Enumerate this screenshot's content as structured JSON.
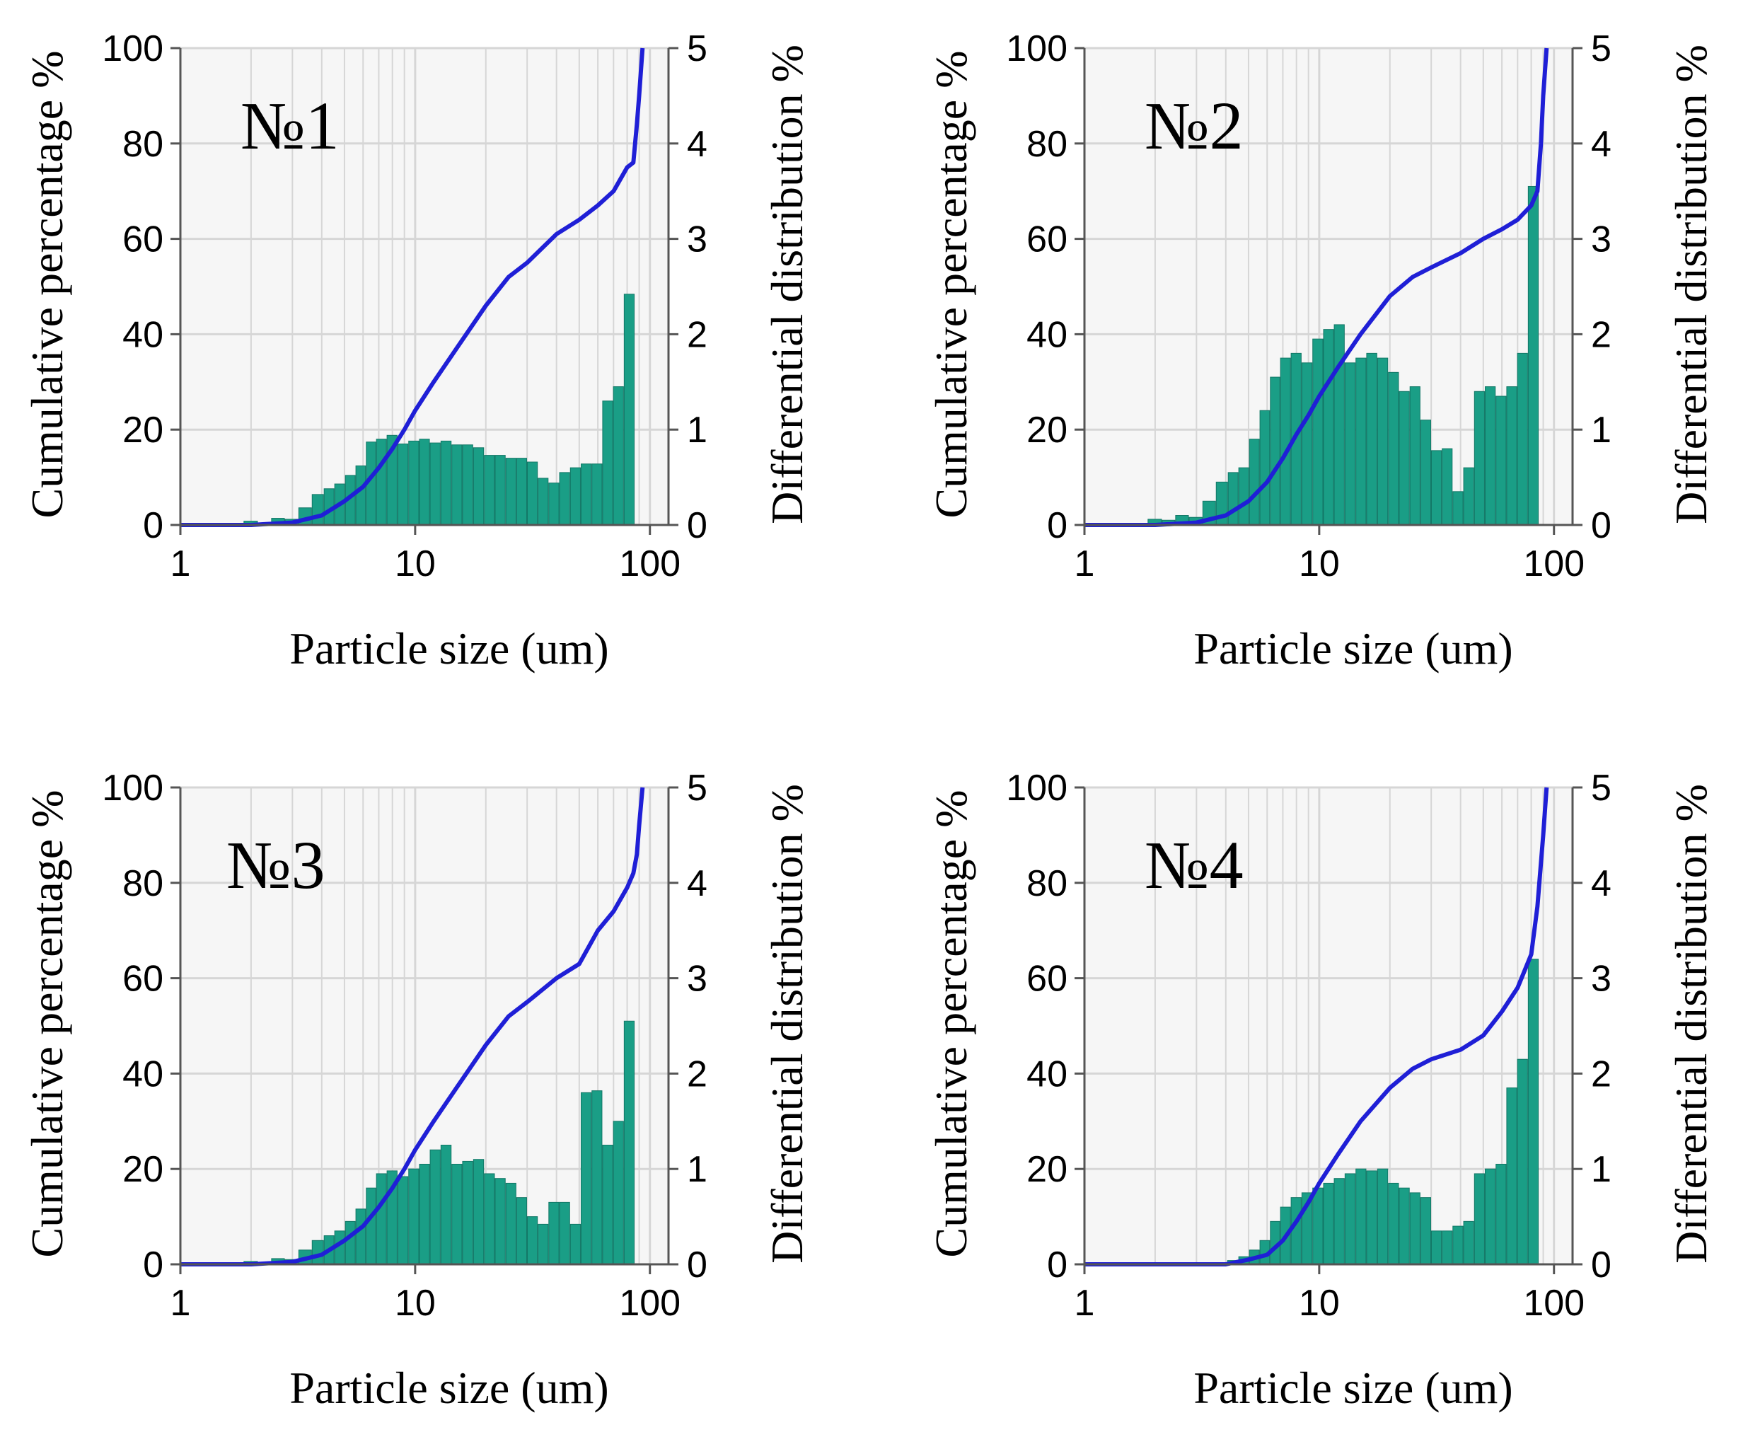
{
  "colors": {
    "bars": "#1a9e86",
    "bar_edge": "#127766",
    "line": "#1f1fd6",
    "plot_bg": "#f6f6f6",
    "grid": "#d6d6d6",
    "axis": "#555555"
  },
  "chart_data": [
    {
      "type": "bar",
      "title": "№1",
      "xlabel": "Particle size (um)",
      "ylabel": "Cumulative percentage %",
      "y2label": "Differential distribution %",
      "xscale": "log",
      "xlim": [
        1,
        120
      ],
      "ylim": [
        0,
        100
      ],
      "y2lim": [
        0,
        5
      ],
      "xticks": [
        "1",
        "10",
        "100"
      ],
      "yticks": [
        "0",
        "20",
        "40",
        "60",
        "80",
        "100"
      ],
      "y2ticks": [
        "0",
        "1",
        "2",
        "3",
        "4",
        "5"
      ],
      "grid": true,
      "series": [
        {
          "name": "Differential distribution %",
          "type": "bar",
          "axis": "right",
          "x": [
            2.0,
            2.3,
            2.6,
            3.0,
            3.4,
            3.9,
            4.3,
            4.8,
            5.3,
            5.9,
            6.5,
            7.2,
            8.0,
            8.9,
            9.9,
            11,
            12.2,
            13.6,
            15.1,
            16.8,
            18.7,
            20.8,
            23.1,
            25.7,
            28.5,
            31.7,
            35.2,
            39.1,
            43.5,
            48.3,
            53.7,
            59.7,
            66.3,
            73.7,
            81.9
          ],
          "values": [
            0.04,
            0.02,
            0.07,
            0.06,
            0.18,
            0.32,
            0.38,
            0.43,
            0.52,
            0.62,
            0.87,
            0.9,
            0.94,
            0.85,
            0.88,
            0.9,
            0.86,
            0.88,
            0.84,
            0.84,
            0.81,
            0.73,
            0.73,
            0.7,
            0.7,
            0.66,
            0.49,
            0.44,
            0.55,
            0.6,
            0.64,
            0.64,
            1.3,
            1.45,
            2.42
          ]
        },
        {
          "name": "Cumulative percentage %",
          "type": "line",
          "axis": "left",
          "x": [
            1,
            2,
            3,
            4,
            5,
            6,
            7,
            8,
            9,
            10,
            12,
            15,
            20,
            25,
            30,
            40,
            50,
            60,
            70,
            80,
            85,
            88,
            90,
            93
          ],
          "values": [
            0,
            0,
            0.5,
            2,
            5,
            8,
            12,
            16,
            20,
            24,
            30,
            37,
            46,
            52,
            55,
            61,
            64,
            67,
            70,
            75,
            76,
            84,
            90,
            100
          ]
        }
      ]
    },
    {
      "type": "bar",
      "title": "№2",
      "xlabel": "Particle size (um)",
      "ylabel": "Cumulative percentage %",
      "y2label": "Differential distribution %",
      "xscale": "log",
      "xlim": [
        1,
        120
      ],
      "ylim": [
        0,
        100
      ],
      "y2lim": [
        0,
        5
      ],
      "xticks": [
        "1",
        "10",
        "100"
      ],
      "yticks": [
        "0",
        "20",
        "40",
        "60",
        "80",
        "100"
      ],
      "y2ticks": [
        "0",
        "1",
        "2",
        "3",
        "4",
        "5"
      ],
      "grid": true,
      "series": [
        {
          "name": "Differential distribution %",
          "type": "bar",
          "axis": "right",
          "x": [
            2.0,
            2.3,
            2.6,
            3.0,
            3.4,
            3.9,
            4.3,
            4.8,
            5.3,
            5.9,
            6.5,
            7.2,
            8.0,
            8.9,
            9.9,
            11,
            12.2,
            13.6,
            15.1,
            16.8,
            18.7,
            20.8,
            23.1,
            25.7,
            28.5,
            31.7,
            35.2,
            39.1,
            43.5,
            48.3,
            53.7,
            59.7,
            66.3,
            73.7,
            81.9
          ],
          "values": [
            0.06,
            0.05,
            0.1,
            0.08,
            0.25,
            0.45,
            0.55,
            0.6,
            0.9,
            1.2,
            1.55,
            1.75,
            1.8,
            1.7,
            1.95,
            2.05,
            2.1,
            1.7,
            1.75,
            1.8,
            1.75,
            1.6,
            1.4,
            1.45,
            1.1,
            0.78,
            0.8,
            0.35,
            0.6,
            1.4,
            1.45,
            1.35,
            1.45,
            1.8,
            3.55
          ]
        },
        {
          "name": "Cumulative percentage %",
          "type": "line",
          "axis": "left",
          "x": [
            1,
            2,
            3,
            4,
            5,
            6,
            7,
            8,
            9,
            10,
            12,
            15,
            20,
            25,
            30,
            40,
            50,
            60,
            70,
            80,
            85,
            88,
            90,
            93
          ],
          "values": [
            0,
            0,
            0.5,
            2,
            5,
            9,
            14,
            19,
            23,
            27,
            33,
            40,
            48,
            52,
            54,
            57,
            60,
            62,
            64,
            67,
            70,
            80,
            90,
            100
          ]
        }
      ]
    },
    {
      "type": "bar",
      "title": "№3",
      "xlabel": "Particle size (um)",
      "ylabel": "Cumulative percentage %",
      "y2label": "Differential distribution %",
      "xscale": "log",
      "xlim": [
        1,
        120
      ],
      "ylim": [
        0,
        100
      ],
      "y2lim": [
        0,
        5
      ],
      "xticks": [
        "1",
        "10",
        "100"
      ],
      "yticks": [
        "0",
        "20",
        "40",
        "60",
        "80",
        "100"
      ],
      "y2ticks": [
        "0",
        "1",
        "2",
        "3",
        "4",
        "5"
      ],
      "grid": true,
      "series": [
        {
          "name": "Differential distribution %",
          "type": "bar",
          "axis": "right",
          "x": [
            2.0,
            2.3,
            2.6,
            3.0,
            3.4,
            3.9,
            4.3,
            4.8,
            5.3,
            5.9,
            6.5,
            7.2,
            8.0,
            8.9,
            9.9,
            11,
            12.2,
            13.6,
            15.1,
            16.8,
            18.7,
            20.8,
            23.1,
            25.7,
            28.5,
            31.7,
            35.2,
            39.1,
            43.5,
            48.3,
            53.7,
            59.7,
            66.3,
            73.7,
            81.9
          ],
          "values": [
            0.03,
            0.02,
            0.06,
            0.05,
            0.15,
            0.25,
            0.3,
            0.35,
            0.45,
            0.58,
            0.8,
            0.95,
            0.98,
            0.92,
            1.0,
            1.05,
            1.2,
            1.25,
            1.05,
            1.08,
            1.1,
            0.95,
            0.9,
            0.85,
            0.7,
            0.5,
            0.42,
            0.65,
            0.65,
            0.42,
            1.8,
            1.82,
            1.25,
            1.5,
            2.55
          ]
        },
        {
          "name": "Cumulative percentage %",
          "type": "line",
          "axis": "left",
          "x": [
            1,
            2,
            3,
            4,
            5,
            6,
            7,
            8,
            9,
            10,
            12,
            15,
            20,
            25,
            30,
            40,
            50,
            60,
            70,
            80,
            85,
            88,
            90,
            93
          ],
          "values": [
            0,
            0,
            0.5,
            2,
            5,
            8,
            12,
            16,
            20,
            24,
            30,
            37,
            46,
            52,
            55,
            60,
            63,
            70,
            74,
            79,
            82,
            86,
            92,
            100
          ]
        }
      ]
    },
    {
      "type": "bar",
      "title": "№4",
      "xlabel": "Particle size (um)",
      "ylabel": "Cumulative percentage %",
      "y2label": "Differential distribution %",
      "xscale": "log",
      "xlim": [
        1,
        120
      ],
      "ylim": [
        0,
        100
      ],
      "y2lim": [
        0,
        5
      ],
      "xticks": [
        "1",
        "10",
        "100"
      ],
      "yticks": [
        "0",
        "20",
        "40",
        "60",
        "80",
        "100"
      ],
      "y2ticks": [
        "0",
        "1",
        "2",
        "3",
        "4",
        "5"
      ],
      "grid": true,
      "series": [
        {
          "name": "Differential distribution %",
          "type": "bar",
          "axis": "right",
          "x": [
            4.3,
            4.8,
            5.3,
            5.9,
            6.5,
            7.2,
            8.0,
            8.9,
            9.9,
            11,
            12.2,
            13.6,
            15.1,
            16.8,
            18.7,
            20.8,
            23.1,
            25.7,
            28.5,
            31.7,
            35.2,
            39.1,
            43.5,
            48.3,
            53.7,
            59.7,
            66.3,
            73.7,
            81.9
          ],
          "values": [
            0.04,
            0.08,
            0.15,
            0.25,
            0.45,
            0.6,
            0.7,
            0.75,
            0.8,
            0.85,
            0.9,
            0.95,
            1.0,
            0.98,
            1.0,
            0.85,
            0.8,
            0.75,
            0.7,
            0.35,
            0.35,
            0.4,
            0.45,
            0.95,
            1.0,
            1.05,
            1.85,
            2.15,
            3.2
          ]
        },
        {
          "name": "Cumulative percentage %",
          "type": "line",
          "axis": "left",
          "x": [
            1,
            4,
            5,
            6,
            7,
            8,
            9,
            10,
            12,
            15,
            20,
            25,
            30,
            40,
            50,
            60,
            70,
            80,
            85,
            90,
            93
          ],
          "values": [
            0,
            0,
            1,
            2,
            5,
            9,
            13,
            17,
            23,
            30,
            37,
            41,
            43,
            45,
            48,
            53,
            58,
            65,
            75,
            90,
            100
          ]
        }
      ]
    }
  ]
}
